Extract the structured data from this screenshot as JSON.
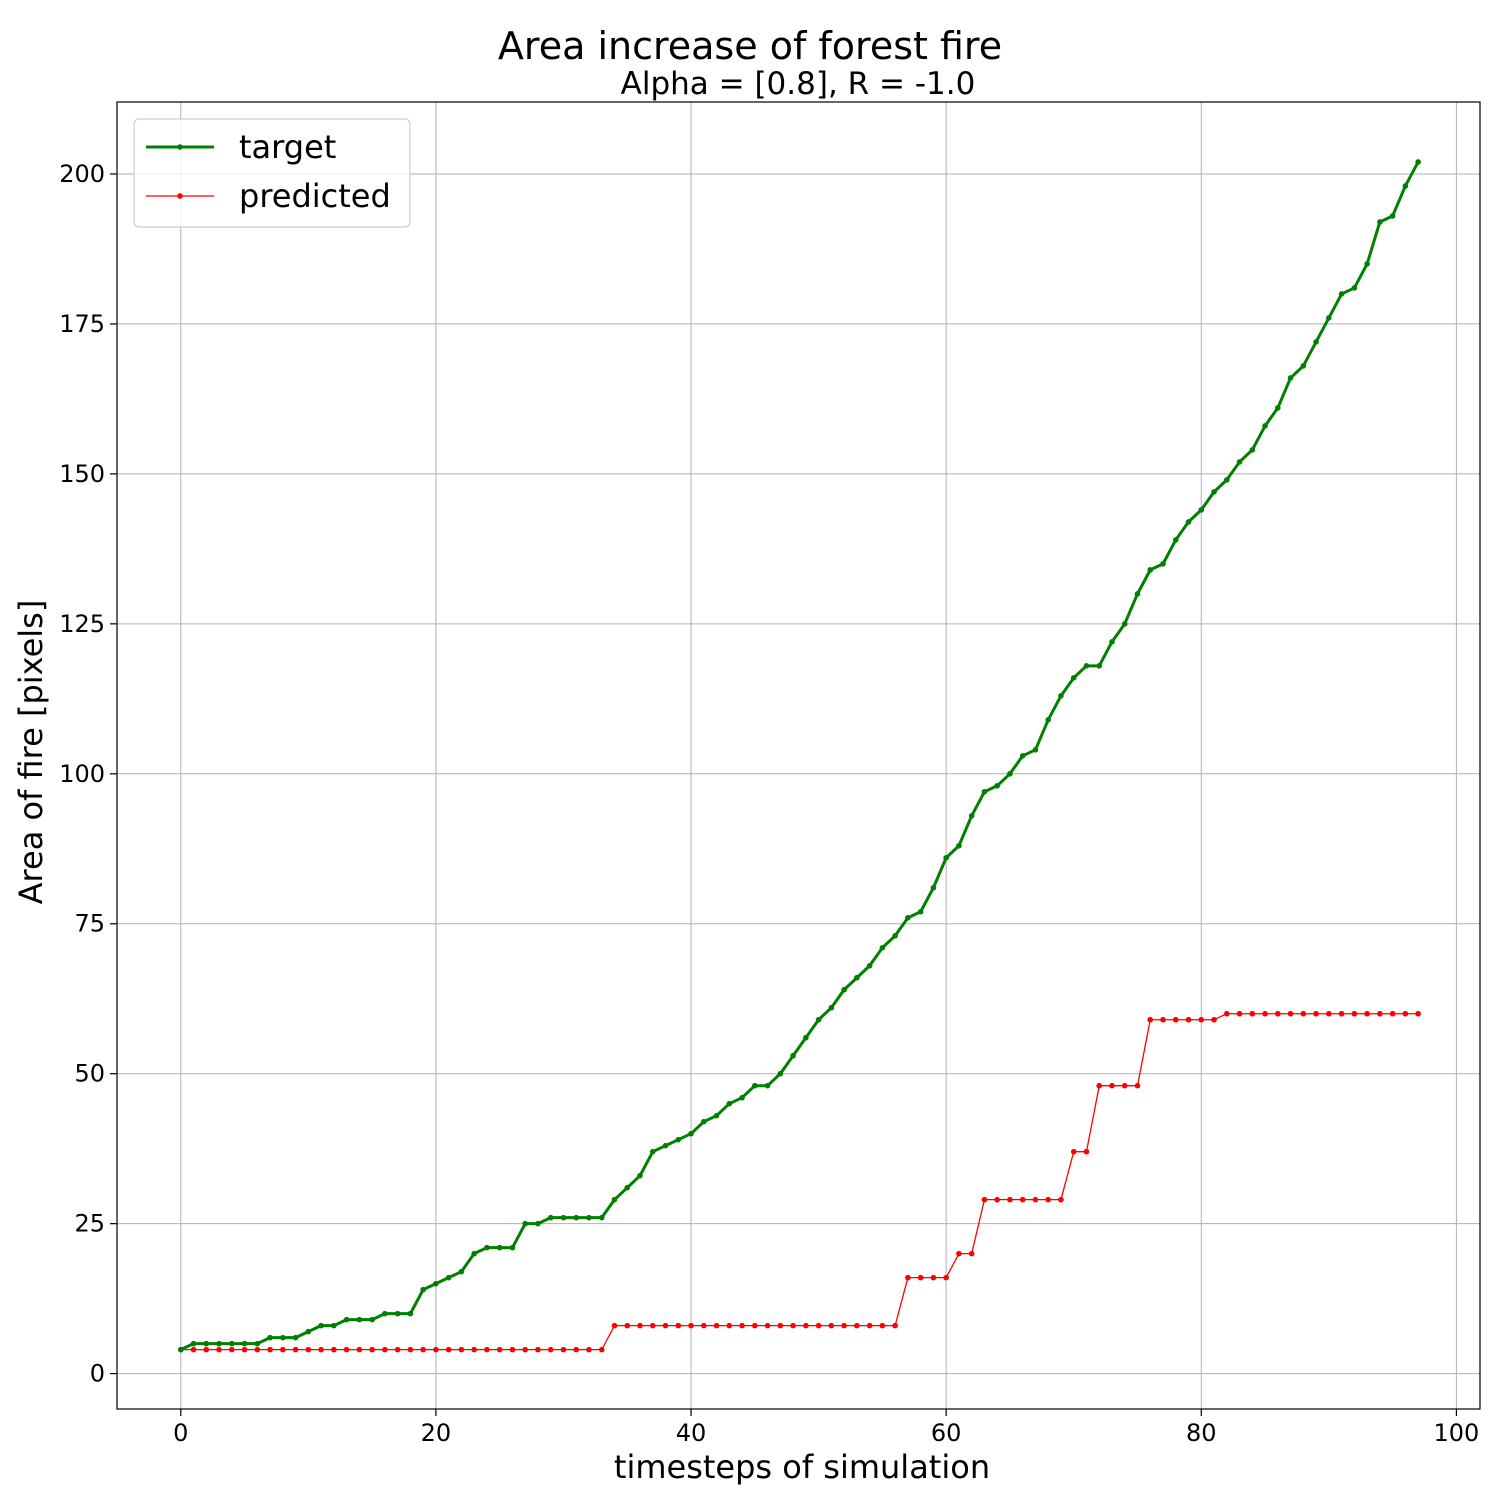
{
  "chart_data": {
    "type": "line",
    "title": "Area increase of forest fire",
    "subtitle": "Alpha = [0.8], R = -1.0",
    "xlabel": "timesteps of simulation",
    "ylabel": "Area of fire [pixels]",
    "xlim": [
      -5,
      101.85
    ],
    "ylim": [
      -5.9,
      212.0
    ],
    "xticks": [
      0,
      20,
      40,
      60,
      80,
      100
    ],
    "yticks": [
      0,
      25,
      50,
      75,
      100,
      125,
      150,
      175,
      200
    ],
    "grid": true,
    "legend_position": "top-left",
    "series": [
      {
        "name": "target",
        "color": "#008000",
        "line_width": "thick",
        "marker": "dot",
        "x": [
          0,
          1,
          2,
          3,
          4,
          5,
          6,
          7,
          8,
          9,
          10,
          11,
          12,
          13,
          14,
          15,
          16,
          17,
          18,
          19,
          20,
          21,
          22,
          23,
          24,
          25,
          26,
          27,
          28,
          29,
          30,
          31,
          32,
          33,
          34,
          35,
          36,
          37,
          38,
          39,
          40,
          41,
          42,
          43,
          44,
          45,
          46,
          47,
          48,
          49,
          50,
          51,
          52,
          53,
          54,
          55,
          56,
          57,
          58,
          59,
          60,
          61,
          62,
          63,
          64,
          65,
          66,
          67,
          68,
          69,
          70,
          71,
          72,
          73,
          74,
          75,
          76,
          77,
          78,
          79,
          80,
          81,
          82,
          83,
          84,
          85,
          86,
          87,
          88,
          89,
          90,
          91,
          92,
          93,
          94,
          95,
          96,
          97
        ],
        "values": [
          4,
          5,
          5,
          5,
          5,
          5,
          5,
          6,
          6,
          6,
          7,
          8,
          8,
          9,
          9,
          9,
          10,
          10,
          10,
          14,
          15,
          16,
          17,
          20,
          21,
          21,
          21,
          25,
          25,
          26,
          26,
          26,
          26,
          26,
          29,
          31,
          33,
          37,
          38,
          39,
          40,
          42,
          43,
          45,
          46,
          48,
          48,
          50,
          53,
          56,
          59,
          61,
          64,
          66,
          68,
          71,
          73,
          76,
          77,
          81,
          86,
          88,
          93,
          97,
          98,
          100,
          103,
          104,
          109,
          113,
          116,
          118,
          118,
          122,
          125,
          130,
          134,
          135,
          139,
          142,
          144,
          147,
          149,
          152,
          154,
          158,
          161,
          166,
          168,
          172,
          176,
          180,
          181,
          185,
          192,
          193,
          198,
          202
        ]
      },
      {
        "name": "predicted",
        "color": "#ff0000",
        "line_width": "thin",
        "marker": "dot",
        "x": [
          0,
          1,
          2,
          3,
          4,
          5,
          6,
          7,
          8,
          9,
          10,
          11,
          12,
          13,
          14,
          15,
          16,
          17,
          18,
          19,
          20,
          21,
          22,
          23,
          24,
          25,
          26,
          27,
          28,
          29,
          30,
          31,
          32,
          33,
          34,
          35,
          36,
          37,
          38,
          39,
          40,
          41,
          42,
          43,
          44,
          45,
          46,
          47,
          48,
          49,
          50,
          51,
          52,
          53,
          54,
          55,
          56,
          57,
          58,
          59,
          60,
          61,
          62,
          63,
          64,
          65,
          66,
          67,
          68,
          69,
          70,
          71,
          72,
          73,
          74,
          75,
          76,
          77,
          78,
          79,
          80,
          81,
          82,
          83,
          84,
          85,
          86,
          87,
          88,
          89,
          90,
          91,
          92,
          93,
          94,
          95,
          96,
          97
        ],
        "values": [
          4,
          4,
          4,
          4,
          4,
          4,
          4,
          4,
          4,
          4,
          4,
          4,
          4,
          4,
          4,
          4,
          4,
          4,
          4,
          4,
          4,
          4,
          4,
          4,
          4,
          4,
          4,
          4,
          4,
          4,
          4,
          4,
          4,
          4,
          8,
          8,
          8,
          8,
          8,
          8,
          8,
          8,
          8,
          8,
          8,
          8,
          8,
          8,
          8,
          8,
          8,
          8,
          8,
          8,
          8,
          8,
          8,
          16,
          16,
          16,
          16,
          20,
          20,
          29,
          29,
          29,
          29,
          29,
          29,
          29,
          37,
          37,
          48,
          48,
          48,
          48,
          59,
          59,
          59,
          59,
          59,
          59,
          60,
          60,
          60,
          60,
          60,
          60,
          60,
          60,
          60,
          60,
          60,
          60,
          60,
          60,
          60,
          60
        ]
      }
    ]
  }
}
